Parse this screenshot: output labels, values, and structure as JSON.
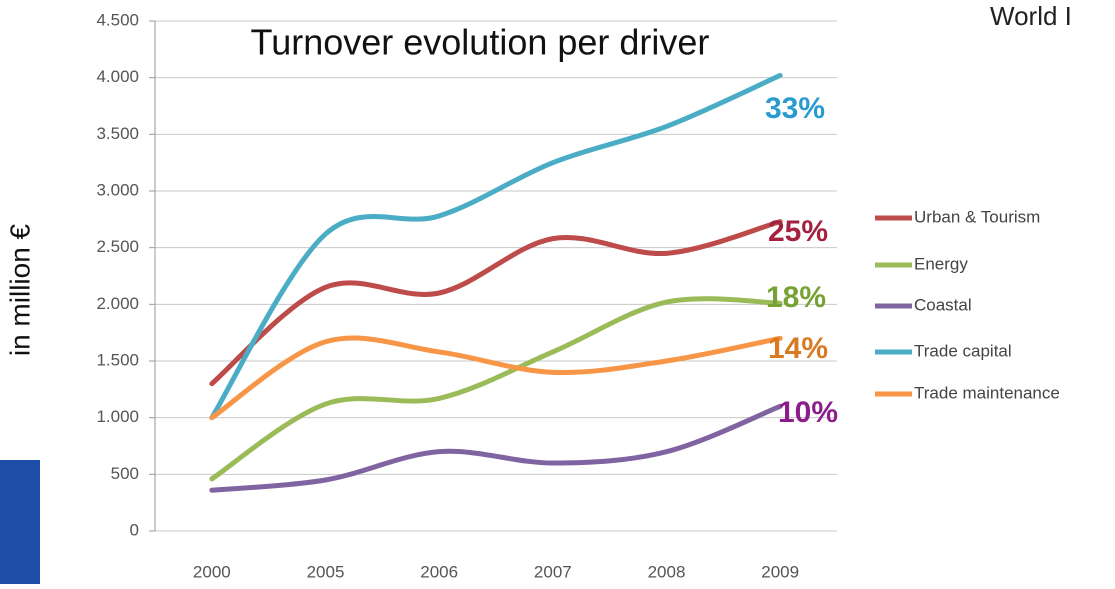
{
  "chart_data": {
    "type": "line",
    "title": "Turnover evolution per driver",
    "y_label": "in million €",
    "corner_text": "World I",
    "categories": [
      "2000",
      "2005",
      "2006",
      "2007",
      "2008",
      "2009"
    ],
    "series": [
      {
        "name": "Urban & Tourism",
        "color": "#bc4b4a",
        "values": [
          1300,
          2150,
          2100,
          2580,
          2450,
          2730
        ]
      },
      {
        "name": "Energy",
        "color": "#9bbb59",
        "values": [
          460,
          1120,
          1170,
          1580,
          2020,
          2010
        ]
      },
      {
        "name": "Coastal",
        "color": "#8064a2",
        "values": [
          360,
          450,
          700,
          600,
          700,
          1100
        ]
      },
      {
        "name": "Trade capital",
        "color": "#4bacc6",
        "values": [
          1000,
          2620,
          2780,
          3250,
          3570,
          4020
        ]
      },
      {
        "name": "Trade maintenance",
        "color": "#f79646",
        "values": [
          1000,
          1670,
          1580,
          1400,
          1500,
          1700
        ]
      }
    ],
    "annotations": [
      {
        "text": "33%",
        "color": "#2a9bd0"
      },
      {
        "text": "25%",
        "color": "#a3223f"
      },
      {
        "text": "18%",
        "color": "#76a233"
      },
      {
        "text": "14%",
        "color": "#d97a22"
      },
      {
        "text": "10%",
        "color": "#8b1e8b"
      }
    ],
    "ylim": [
      0,
      4500
    ],
    "yticks": [
      0,
      500,
      {
        "value": 1000,
        "label": "1.000"
      },
      {
        "value": 1500,
        "label": "1.500"
      },
      {
        "value": 2000,
        "label": "2.000"
      },
      {
        "value": 2500,
        "label": "2.500"
      },
      {
        "value": 3000,
        "label": "3.000"
      },
      {
        "value": 3500,
        "label": "3.500"
      },
      {
        "value": 4000,
        "label": "4.000"
      },
      {
        "value": 4500,
        "label": "4.500"
      }
    ],
    "grid": true,
    "legend": "right"
  }
}
